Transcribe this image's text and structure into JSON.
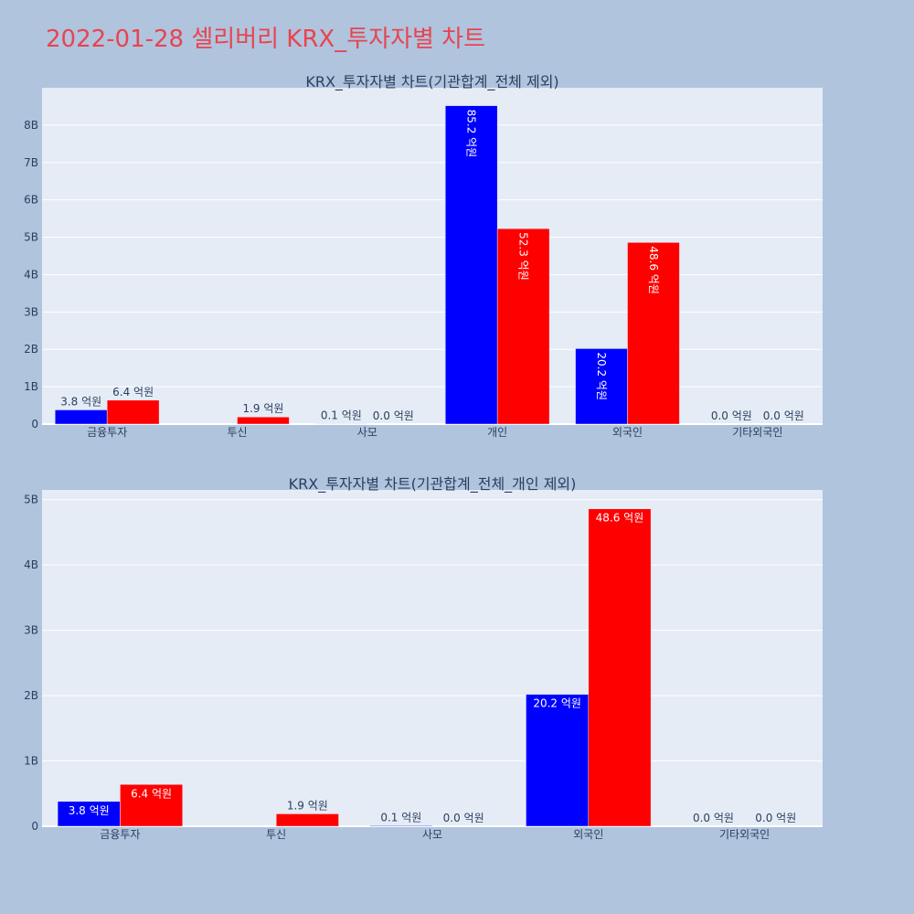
{
  "page_title": "2022-01-28 셀리버리 KRX_투자자별 차트",
  "colors": {
    "series_a": "#0000ff",
    "series_b": "#ff0000",
    "title": "#e8444f"
  },
  "chart_data": [
    {
      "type": "bar",
      "title": "KRX_투자자별 차트(기관합계_전체 제외)",
      "xlabel": "",
      "ylabel": "",
      "categories": [
        "금융투자",
        "투신",
        "사모",
        "개인",
        "외국인",
        "기타외국인"
      ],
      "ylim": [
        0,
        9000000000
      ],
      "yticks": [
        0,
        1000000000,
        2000000000,
        3000000000,
        4000000000,
        5000000000,
        6000000000,
        7000000000,
        8000000000
      ],
      "ytick_labels": [
        "0",
        "1B",
        "2B",
        "3B",
        "4B",
        "5B",
        "6B",
        "7B",
        "8B"
      ],
      "grid": true,
      "series": [
        {
          "color": "#0000ff",
          "values": [
            380000000,
            0,
            10000000,
            8520000000,
            2020000000,
            0
          ],
          "labels": [
            "3.8 억원",
            "",
            "0.1 억원",
            "85.2 억원",
            "20.2 억원",
            "0.0 억원"
          ]
        },
        {
          "color": "#ff0000",
          "values": [
            640000000,
            190000000,
            0,
            5230000000,
            4860000000,
            0
          ],
          "labels": [
            "6.4 억원",
            "1.9 억원",
            "0.0 억원",
            "52.3 억원",
            "48.6 억원",
            "0.0 억원"
          ]
        }
      ]
    },
    {
      "type": "bar",
      "title": "KRX_투자자별 차트(기관합계_전체_개인 제외)",
      "xlabel": "",
      "ylabel": "",
      "categories": [
        "금융투자",
        "투신",
        "사모",
        "외국인",
        "기타외국인"
      ],
      "ylim": [
        0,
        5150000000
      ],
      "yticks": [
        0,
        1000000000,
        2000000000,
        3000000000,
        4000000000,
        5000000000
      ],
      "ytick_labels": [
        "0",
        "1B",
        "2B",
        "3B",
        "4B",
        "5B"
      ],
      "grid": true,
      "series": [
        {
          "color": "#0000ff",
          "values": [
            380000000,
            0,
            10000000,
            2020000000,
            0
          ],
          "labels": [
            "3.8 억원",
            "",
            "0.1 억원",
            "20.2 억원",
            "0.0 억원"
          ]
        },
        {
          "color": "#ff0000",
          "values": [
            640000000,
            190000000,
            0,
            4860000000,
            0
          ],
          "labels": [
            "6.4 억원",
            "1.9 억원",
            "0.0 억원",
            "48.6 억원",
            "0.0 억원"
          ]
        }
      ]
    }
  ]
}
